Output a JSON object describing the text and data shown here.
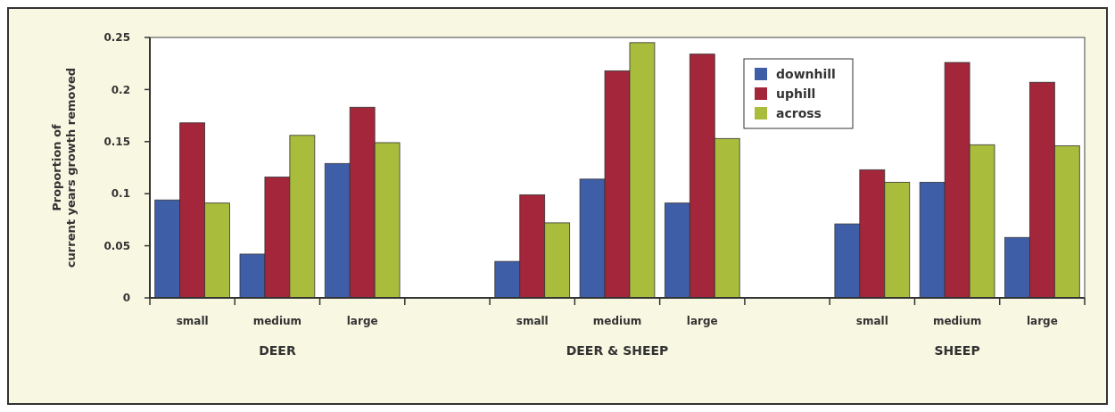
{
  "chart_data": {
    "type": "bar",
    "ylabel": "Proportion of current years growth removed",
    "categories": [
      "small",
      "medium",
      "large",
      null,
      "small",
      "medium",
      "large",
      null,
      "small",
      "medium",
      "large"
    ],
    "series": [
      {
        "name": "downhill",
        "color": "#3f5ea8",
        "values": [
          0.094,
          0.042,
          0.129,
          null,
          0.035,
          0.114,
          0.091,
          null,
          0.071,
          0.111,
          0.058
        ]
      },
      {
        "name": "uphill",
        "color": "#a3263a",
        "values": [
          0.168,
          0.116,
          0.183,
          null,
          0.099,
          0.218,
          0.234,
          null,
          0.123,
          0.226,
          0.207
        ]
      },
      {
        "name": "across",
        "color": "#a9bc3c",
        "values": [
          0.091,
          0.156,
          0.149,
          null,
          0.072,
          0.245,
          0.153,
          null,
          0.111,
          0.147,
          0.146
        ]
      }
    ],
    "ylim": [
      0,
      0.25
    ],
    "yticks": [
      0,
      0.05,
      0.1,
      0.15,
      0.2,
      0.25
    ],
    "legend": "top right",
    "grid": false,
    "annotations": [
      "DEER",
      "DEER & SHEEP",
      "SHEEP"
    ]
  }
}
